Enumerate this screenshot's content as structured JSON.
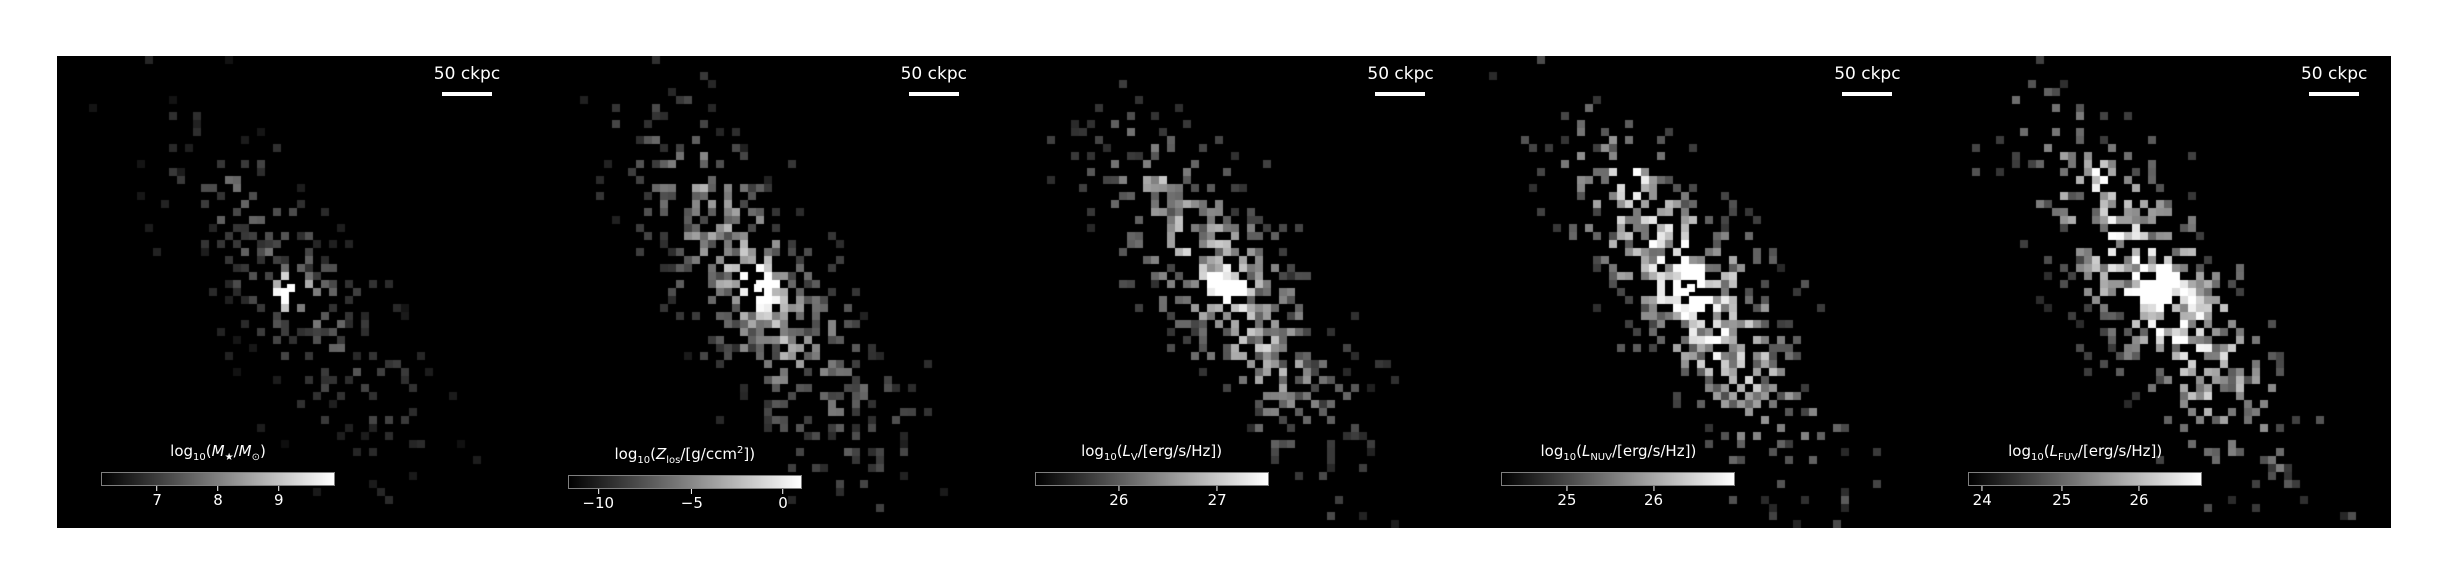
{
  "figure": {
    "scale_label": "50 ckpc",
    "panels": [
      {
        "id": "stellar-mass",
        "colorbar": {
          "label_html": "log<sub>10</sub>(<i>M</i><sub>★</sub>/<i>M</i><sub>⊙</sub>)",
          "ticks": [
            "7",
            "8",
            "9"
          ],
          "tick_fractions": [
            0.24,
            0.5,
            0.76
          ]
        },
        "map": {
          "seed": 11,
          "density": 0.55,
          "brightness": 0.55,
          "core": 1.0
        }
      },
      {
        "id": "metallicity",
        "colorbar": {
          "label_html": "log<sub>10</sub>(<i>Z</i><sub>los</sub>/[g/ccm<sup>2</sup>])",
          "ticks": [
            "−10",
            "−5",
            "0"
          ],
          "tick_fractions": [
            0.13,
            0.53,
            0.92
          ]
        },
        "map": {
          "seed": 23,
          "density": 1.0,
          "brightness": 0.9,
          "core": 1.0
        }
      },
      {
        "id": "v-band",
        "colorbar": {
          "label_html": "log<sub>10</sub>(<i>L</i><sub>V</sub>/[erg/s/Hz])",
          "ticks": [
            "26",
            "27"
          ],
          "tick_fractions": [
            0.36,
            0.78
          ]
        },
        "map": {
          "seed": 37,
          "density": 1.0,
          "brightness": 1.0,
          "core": 1.0
        }
      },
      {
        "id": "nuv",
        "colorbar": {
          "label_html": "log<sub>10</sub>(<i>L</i><sub>NUV</sub>/[erg/s/Hz])",
          "ticks": [
            "25",
            "26"
          ],
          "tick_fractions": [
            0.28,
            0.65
          ]
        },
        "map": {
          "seed": 51,
          "density": 1.0,
          "brightness": 1.25,
          "core": 0.95
        }
      },
      {
        "id": "fuv",
        "colorbar": {
          "label_html": "log<sub>10</sub>(<i>L</i><sub>FUV</sub>/[erg/s/Hz])",
          "ticks": [
            "24",
            "25",
            "26"
          ],
          "tick_fractions": [
            0.06,
            0.4,
            0.73
          ]
        },
        "map": {
          "seed": 67,
          "density": 1.0,
          "brightness": 1.3,
          "core": 0.95
        }
      }
    ]
  }
}
